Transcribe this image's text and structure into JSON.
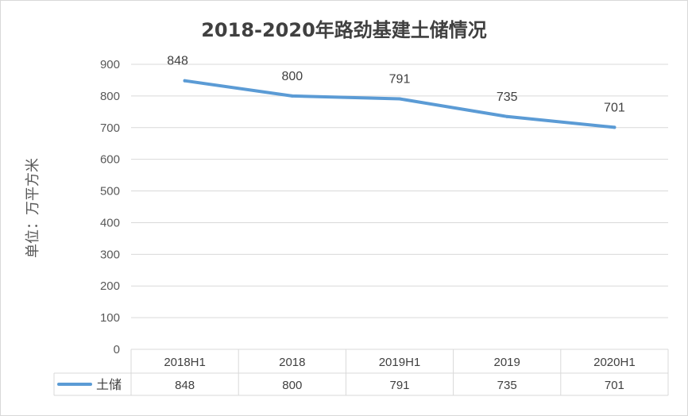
{
  "chart_data": {
    "type": "line",
    "title": "2018-2020年路劲基建土储情况",
    "ylabel": "单位：万平方米",
    "xlabel": "",
    "categories": [
      "2018H1",
      "2018",
      "2019H1",
      "2019",
      "2020H1"
    ],
    "series": [
      {
        "name": "土储",
        "values": [
          848,
          800,
          791,
          735,
          701
        ],
        "color": "#5b9bd5"
      }
    ],
    "ylim": [
      0,
      900
    ],
    "yticks": [
      0,
      100,
      200,
      300,
      400,
      500,
      600,
      700,
      800,
      900
    ],
    "grid": true,
    "data_labels": true,
    "data_table": true
  }
}
